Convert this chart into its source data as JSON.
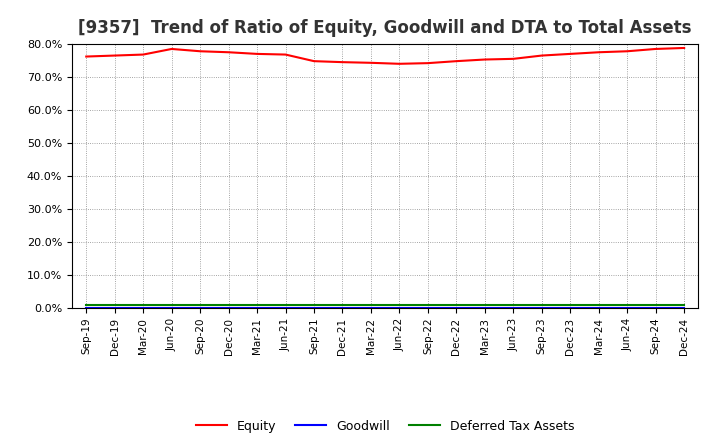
{
  "title": "[9357]  Trend of Ratio of Equity, Goodwill and DTA to Total Assets",
  "x_labels": [
    "Sep-19",
    "Dec-19",
    "Mar-20",
    "Jun-20",
    "Sep-20",
    "Dec-20",
    "Mar-21",
    "Jun-21",
    "Sep-21",
    "Dec-21",
    "Mar-22",
    "Jun-22",
    "Sep-22",
    "Dec-22",
    "Mar-23",
    "Jun-23",
    "Sep-23",
    "Dec-23",
    "Mar-24",
    "Jun-24",
    "Sep-24",
    "Dec-24"
  ],
  "equity": [
    76.2,
    76.5,
    76.8,
    78.5,
    77.8,
    77.5,
    77.0,
    76.8,
    74.8,
    74.5,
    74.3,
    74.0,
    74.2,
    74.8,
    75.3,
    75.5,
    76.5,
    77.0,
    77.5,
    77.8,
    78.5,
    78.8
  ],
  "goodwill": [
    0.0,
    0.0,
    0.0,
    0.0,
    0.0,
    0.0,
    0.0,
    0.0,
    0.0,
    0.0,
    0.0,
    0.0,
    0.0,
    0.0,
    0.0,
    0.0,
    0.0,
    0.0,
    0.0,
    0.0,
    0.0,
    0.0
  ],
  "dta": [
    0.8,
    0.8,
    0.8,
    0.8,
    0.8,
    0.8,
    0.8,
    0.8,
    0.8,
    0.8,
    0.8,
    0.8,
    0.8,
    0.8,
    0.8,
    0.8,
    0.8,
    0.8,
    0.8,
    0.8,
    0.8,
    0.8
  ],
  "equity_color": "#FF0000",
  "goodwill_color": "#0000FF",
  "dta_color": "#008000",
  "ylim": [
    0,
    80
  ],
  "yticks": [
    0,
    10,
    20,
    30,
    40,
    50,
    60,
    70,
    80
  ],
  "background_color": "#FFFFFF",
  "plot_bg_color": "#FFFFFF",
  "title_fontsize": 12,
  "legend_labels": [
    "Equity",
    "Goodwill",
    "Deferred Tax Assets"
  ]
}
